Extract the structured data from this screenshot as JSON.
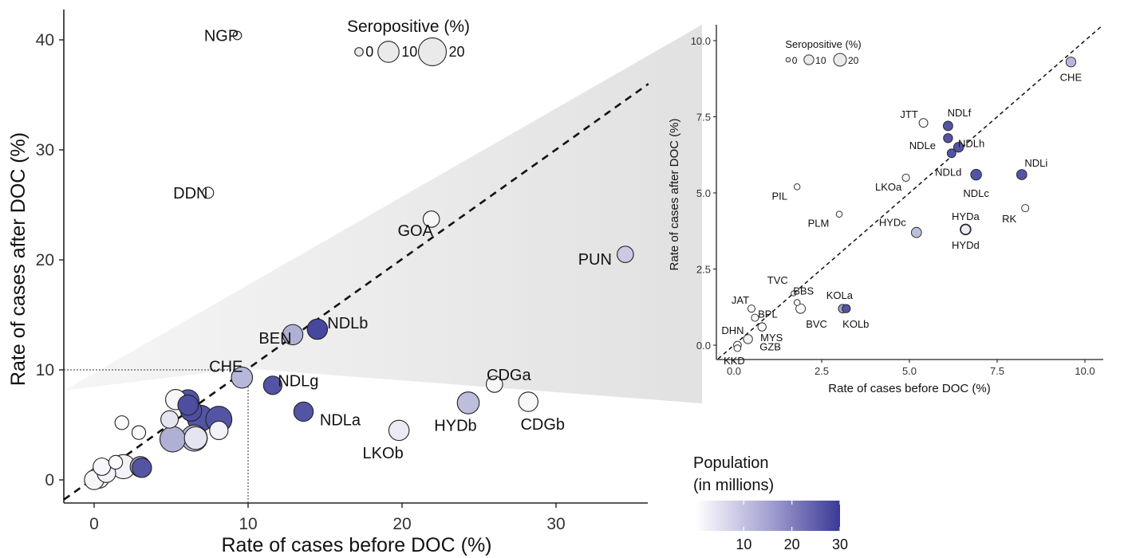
{
  "chart_data": [
    {
      "type": "scatter",
      "xlabel": "Rate of cases before DOC (%)",
      "ylabel": "Rate of cases after DOC (%)",
      "xlim": [
        -1.8,
        36
      ],
      "ylim": [
        -2,
        42
      ],
      "xticks": [
        0,
        10,
        20,
        30
      ],
      "yticks": [
        0,
        10,
        20,
        30,
        40
      ],
      "reference_line": "y = x (dashed)",
      "zoom_box": {
        "x": [
          0,
          10
        ],
        "y": [
          0,
          10
        ]
      },
      "points": [
        {
          "label": "NGP",
          "x": 9.3,
          "y": 40.4,
          "sero": 0.5,
          "pop": 2.5
        },
        {
          "label": "DDN",
          "x": 7.4,
          "y": 26.1,
          "sero": 1.5,
          "pop": 0.5
        },
        {
          "label": "GOA",
          "x": 21.9,
          "y": 23.7,
          "sero": 5,
          "pop": 1.5
        },
        {
          "label": "PUN",
          "x": 34.5,
          "y": 20.5,
          "sero": 5,
          "pop": 8
        },
        {
          "label": "NDLb",
          "x": 14.5,
          "y": 13.7,
          "sero": 9,
          "pop": 28
        },
        {
          "label": "BEN",
          "x": 12.9,
          "y": 13.2,
          "sero": 9,
          "pop": 12
        },
        {
          "label": "CHE",
          "x": 9.6,
          "y": 9.3,
          "sero": 10,
          "pop": 11
        },
        {
          "label": "NDLg",
          "x": 11.6,
          "y": 8.6,
          "sero": 7,
          "pop": 26
        },
        {
          "label": "NDLa",
          "x": 13.6,
          "y": 6.2,
          "sero": 8,
          "pop": 26
        },
        {
          "label": "CDGa",
          "x": 26.0,
          "y": 8.7,
          "sero": 5,
          "pop": 1
        },
        {
          "label": "HYDb",
          "x": 24.3,
          "y": 7.0,
          "sero": 11,
          "pop": 10
        },
        {
          "label": "CDGb",
          "x": 28.2,
          "y": 7.1,
          "sero": 8,
          "pop": 1
        },
        {
          "label": "LKOb",
          "x": 19.8,
          "y": 4.5,
          "sero": 9,
          "pop": 3
        },
        {
          "label": "",
          "x": 5.3,
          "y": 7.3,
          "sero": 9,
          "pop": 1.5
        },
        {
          "label": "",
          "x": 6.1,
          "y": 7.2,
          "sero": 11,
          "pop": 26
        },
        {
          "label": "",
          "x": 6.1,
          "y": 6.8,
          "sero": 9,
          "pop": 27
        },
        {
          "label": "",
          "x": 6.3,
          "y": 6.3,
          "sero": 10,
          "pop": 27
        },
        {
          "label": "",
          "x": 6.9,
          "y": 5.6,
          "sero": 17,
          "pop": 26
        },
        {
          "label": "",
          "x": 8.1,
          "y": 5.5,
          "sero": 17,
          "pop": 26
        },
        {
          "label": "",
          "x": 8.1,
          "y": 4.5,
          "sero": 7,
          "pop": 2
        },
        {
          "label": "",
          "x": 4.9,
          "y": 5.5,
          "sero": 6,
          "pop": 4
        },
        {
          "label": "",
          "x": 1.8,
          "y": 5.2,
          "sero": 3,
          "pop": 0.5
        },
        {
          "label": "",
          "x": 2.9,
          "y": 4.3,
          "sero": 3,
          "pop": 0.5
        },
        {
          "label": "",
          "x": 5.1,
          "y": 3.7,
          "sero": 16,
          "pop": 12
        },
        {
          "label": "",
          "x": 6.5,
          "y": 3.8,
          "sero": 17,
          "pop": 11
        },
        {
          "label": "",
          "x": 6.6,
          "y": 3.8,
          "sero": 12,
          "pop": 4
        },
        {
          "label": "",
          "x": 3.0,
          "y": 1.2,
          "sero": 9,
          "pop": 14
        },
        {
          "label": "",
          "x": 3.1,
          "y": 1.1,
          "sero": 8,
          "pop": 26
        },
        {
          "label": "",
          "x": 1.9,
          "y": 1.2,
          "sero": 14,
          "pop": 2
        },
        {
          "label": "",
          "x": 1.4,
          "y": 1.6,
          "sero": 3,
          "pop": 0.5
        },
        {
          "label": "",
          "x": 0.5,
          "y": 1.2,
          "sero": 6,
          "pop": 1
        },
        {
          "label": "",
          "x": 0.8,
          "y": 0.6,
          "sero": 7,
          "pop": 2
        },
        {
          "label": "",
          "x": 0.3,
          "y": 0.2,
          "sero": 10,
          "pop": 1.5
        },
        {
          "label": "",
          "x": 0.0,
          "y": 0.0,
          "sero": 8,
          "pop": 1.5
        }
      ],
      "legend": {
        "size_title": "Seropositive (%)",
        "size_levels": [
          {
            "label": "0",
            "value": 0.5
          },
          {
            "label": "10",
            "value": 10
          },
          {
            "label": "20",
            "value": 20
          }
        ],
        "color_title_line1": "Population",
        "color_title_line2": "(in millions)",
        "color_range": [
          0,
          30
        ],
        "color_ticks": [
          10,
          20,
          30
        ],
        "color_low": "#ffffff",
        "color_high": "#3a3a96"
      }
    },
    {
      "type": "scatter",
      "xlabel": "Rate of cases before DOC (%)",
      "ylabel": "Rate of cases after DOC (%)",
      "xlim": [
        -0.5,
        10.5
      ],
      "ylim": [
        -0.5,
        10.5
      ],
      "xticks": [
        0.0,
        2.5,
        5.0,
        7.5,
        10.0
      ],
      "yticks": [
        0.0,
        2.5,
        5.0,
        7.5,
        10.0
      ],
      "reference_line": "y = x (dashed)",
      "points": [
        {
          "label": "CHE",
          "x": 9.6,
          "y": 9.3,
          "sero": 10,
          "pop": 11
        },
        {
          "label": "JTT",
          "x": 5.4,
          "y": 7.3,
          "sero": 7,
          "pop": 1
        },
        {
          "label": "NDLf",
          "x": 6.1,
          "y": 7.2,
          "sero": 9,
          "pop": 26
        },
        {
          "label": "NDLe",
          "x": 6.1,
          "y": 6.8,
          "sero": 8,
          "pop": 26
        },
        {
          "label": "NDLh",
          "x": 6.4,
          "y": 6.5,
          "sero": 10,
          "pop": 26
        },
        {
          "label": "NDLd",
          "x": 6.2,
          "y": 6.3,
          "sero": 7,
          "pop": 26
        },
        {
          "label": "NDLc",
          "x": 6.9,
          "y": 5.6,
          "sero": 13,
          "pop": 26
        },
        {
          "label": "NDLi",
          "x": 8.2,
          "y": 5.6,
          "sero": 11,
          "pop": 26
        },
        {
          "label": "LKOa",
          "x": 4.9,
          "y": 5.5,
          "sero": 4,
          "pop": 2
        },
        {
          "label": "PIL",
          "x": 1.8,
          "y": 5.2,
          "sero": 2,
          "pop": 0.5
        },
        {
          "label": "PLM",
          "x": 3.0,
          "y": 4.3,
          "sero": 2,
          "pop": 0.5
        },
        {
          "label": "RK",
          "x": 8.3,
          "y": 4.5,
          "sero": 4,
          "pop": 1
        },
        {
          "label": "HYDc",
          "x": 5.2,
          "y": 3.7,
          "sero": 11,
          "pop": 10
        },
        {
          "label": "HYDa",
          "x": 6.6,
          "y": 3.8,
          "sero": 13,
          "pop": 10
        },
        {
          "label": "HYDd",
          "x": 6.6,
          "y": 3.8,
          "sero": 9,
          "pop": 3
        },
        {
          "label": "TVC",
          "x": 1.7,
          "y": 1.7,
          "sero": 1,
          "pop": 0.5
        },
        {
          "label": "BBS",
          "x": 1.8,
          "y": 1.4,
          "sero": 2,
          "pop": 0.5
        },
        {
          "label": "KOLa",
          "x": 3.1,
          "y": 1.2,
          "sero": 7,
          "pop": 14
        },
        {
          "label": "KOLb",
          "x": 3.2,
          "y": 1.2,
          "sero": 6,
          "pop": 26
        },
        {
          "label": "BVC",
          "x": 1.9,
          "y": 1.2,
          "sero": 9,
          "pop": 1
        },
        {
          "label": "JAT",
          "x": 0.5,
          "y": 1.2,
          "sero": 4,
          "pop": 1
        },
        {
          "label": "BPL",
          "x": 0.6,
          "y": 0.9,
          "sero": 4,
          "pop": 1
        },
        {
          "label": "MYS",
          "x": 0.8,
          "y": 0.6,
          "sero": 6,
          "pop": 1
        },
        {
          "label": "DHN",
          "x": 0.1,
          "y": 0.0,
          "sero": 5,
          "pop": 1
        },
        {
          "label": "GZB",
          "x": 0.4,
          "y": 0.2,
          "sero": 8,
          "pop": 2
        },
        {
          "label": "KKD",
          "x": 0.1,
          "y": -0.1,
          "sero": 3,
          "pop": 1
        }
      ],
      "legend": {
        "size_title": "Seropositive (%)",
        "size_levels": [
          {
            "label": "0",
            "value": 0.5
          },
          {
            "label": "10",
            "value": 10
          },
          {
            "label": "20",
            "value": 20
          }
        ]
      }
    }
  ]
}
